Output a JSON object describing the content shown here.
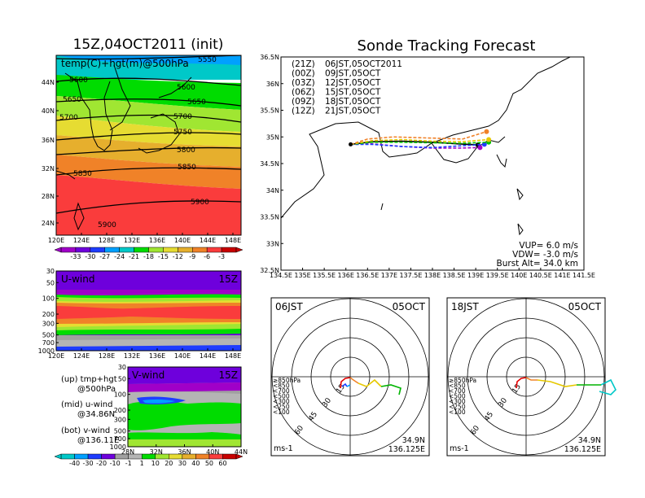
{
  "chart_data": [
    {
      "type": "heatmap",
      "title": "15Z,04OCT2011 (init)",
      "subtitle": "temp(C)+hgt(m)@500hPa",
      "x_ticks": [
        "120E",
        "124E",
        "128E",
        "132E",
        "136E",
        "140E",
        "144E",
        "148E"
      ],
      "y_ticks": [
        "24N",
        "28N",
        "32N",
        "36N",
        "40N",
        "44N"
      ],
      "contour_labels": [
        "5550",
        "5600",
        "5600",
        "5650",
        "5650",
        "5700",
        "5700",
        "5750",
        "5800",
        "5850",
        "5850",
        "5900",
        "5900"
      ],
      "colorbar_ticks": [
        "-33",
        "-30",
        "-27",
        "-24",
        "-21",
        "-18",
        "-15",
        "-12",
        "-9",
        "-6",
        "-3"
      ],
      "colorbar_colors": [
        "#a000c8",
        "#6e00dc",
        "#1e3cff",
        "#00a0ff",
        "#00c8c8",
        "#00dc00",
        "#a0e632",
        "#e6dc32",
        "#e6af2d",
        "#f08228",
        "#fa3c3c",
        "#c80000"
      ]
    },
    {
      "type": "heatmap",
      "title": "U-wind",
      "time_label": "15Z",
      "x_ticks": [
        "120E",
        "124E",
        "128E",
        "132E",
        "136E",
        "140E",
        "144E",
        "148E"
      ],
      "y_ticks": [
        "30",
        "50",
        "100",
        "200",
        "300",
        "500",
        "700",
        "1000"
      ]
    },
    {
      "type": "heatmap",
      "title": "V-wind",
      "time_label": "15Z",
      "x_ticks": [
        "28N",
        "32N",
        "36N",
        "40N",
        "44N"
      ],
      "y_ticks": [
        "30",
        "50",
        "100",
        "200",
        "300",
        "500",
        "700",
        "1000"
      ],
      "colorbar_ticks": [
        "-40",
        "-30",
        "-20",
        "-10",
        "-1",
        "1",
        "10",
        "20",
        "30",
        "40",
        "50",
        "60"
      ],
      "colorbar_colors": [
        "#00c8c8",
        "#00a0ff",
        "#1e3cff",
        "#6e00dc",
        "#a0a0a0",
        "#b4b4b4",
        "#00dc00",
        "#a0e632",
        "#e6dc32",
        "#e6af2d",
        "#f08228",
        "#fa3c3c",
        "#c80000"
      ]
    },
    {
      "type": "line",
      "title": "Sonde Tracking Forecast",
      "xlim": [
        134.5,
        141.5
      ],
      "ylim": [
        32.5,
        36.5
      ],
      "x_ticks": [
        "134.5E",
        "135E",
        "135.5E",
        "136E",
        "136.5E",
        "137E",
        "137.5E",
        "138E",
        "138.5E",
        "139E",
        "139.5E",
        "140E",
        "140.5E",
        "141E",
        "141.5E"
      ],
      "y_ticks": [
        "32.5N",
        "33N",
        "33.5N",
        "34N",
        "34.5N",
        "35N",
        "35.5N",
        "36N",
        "36.5N"
      ],
      "launch": {
        "lon": 136.11,
        "lat": 34.86
      },
      "series": [
        {
          "name": "(21Z)",
          "label": "06JST,05OCT2011",
          "color": "#000000",
          "x": [
            136.11,
            136.6,
            137.3,
            138.0,
            138.6,
            139.05
          ],
          "y": [
            34.86,
            34.91,
            34.92,
            34.9,
            34.87,
            34.85
          ]
        },
        {
          "name": "(00Z)",
          "label": "09JST,05OCT",
          "color": "#a000c8",
          "x": [
            136.11,
            136.6,
            137.3,
            138.0,
            138.6,
            139.1
          ],
          "y": [
            34.86,
            34.87,
            34.82,
            34.79,
            34.79,
            34.8
          ]
        },
        {
          "name": "(03Z)",
          "label": "12JST,05OCT",
          "color": "#1e3cff",
          "x": [
            136.11,
            136.6,
            137.3,
            138.0,
            138.6,
            139.2
          ],
          "y": [
            34.86,
            34.86,
            34.82,
            34.8,
            34.83,
            34.86
          ]
        },
        {
          "name": "(06Z)",
          "label": "15JST,05OCT",
          "color": "#00c000",
          "x": [
            136.11,
            136.6,
            137.3,
            138.0,
            138.7,
            139.3
          ],
          "y": [
            34.86,
            34.9,
            34.9,
            34.89,
            34.88,
            34.9
          ]
        },
        {
          "name": "(09Z)",
          "label": "18JST,05OCT",
          "color": "#e6c800",
          "x": [
            136.11,
            136.6,
            137.3,
            138.0,
            138.7,
            139.3
          ],
          "y": [
            34.86,
            34.93,
            34.95,
            34.92,
            34.91,
            34.95
          ]
        },
        {
          "name": "(12Z)",
          "label": "21JST,05OCT",
          "color": "#f08228",
          "x": [
            136.11,
            136.5,
            137.1,
            137.9,
            138.7,
            139.25
          ],
          "y": [
            34.86,
            34.96,
            35.0,
            34.98,
            34.96,
            35.1
          ]
        }
      ],
      "info": {
        "vup": "VUP= 6.0 m/s",
        "vdw": "VDW= -3.0 m/s",
        "burst": "Burst Alt= 34.0 km"
      }
    },
    {
      "type": "scatter",
      "title": "06JST",
      "date": "05OCT",
      "ring_labels": [
        "15",
        "30",
        "45",
        "60"
      ],
      "legend": [
        {
          "label": "≥850hPa",
          "color": "#e60000"
        },
        {
          "label": "<850",
          "color": "#f08228"
        },
        {
          "label": "<700",
          "color": "#e6c800"
        },
        {
          "label": "<500",
          "color": "#00b400"
        },
        {
          "label": "<300",
          "color": "#00c8c8"
        },
        {
          "label": "<250",
          "color": "#00a0ff"
        },
        {
          "label": "<100",
          "color": "#1e3cff"
        }
      ],
      "unit": "ms-1",
      "location": [
        "34.9N",
        "136.125E"
      ]
    },
    {
      "type": "scatter",
      "title": "18JST",
      "date": "05OCT",
      "ring_labels": [
        "15",
        "30",
        "45",
        "60"
      ],
      "legend": [
        {
          "label": "≥850hPa",
          "color": "#e60000"
        },
        {
          "label": "<850",
          "color": "#f08228"
        },
        {
          "label": "<700",
          "color": "#e6c800"
        },
        {
          "label": "<500",
          "color": "#00b400"
        },
        {
          "label": "<300",
          "color": "#00c8c8"
        },
        {
          "label": "<250",
          "color": "#00a0ff"
        },
        {
          "label": "<100",
          "color": "#1e3cff"
        }
      ],
      "unit": "ms-1",
      "location": [
        "34.9N",
        "136.125E"
      ]
    }
  ],
  "side_notes": [
    {
      "a": "(up) tmp+hgt",
      "b": "@500hPa"
    },
    {
      "a": "(mid) u-wind",
      "b": "@34.86N"
    },
    {
      "a": "(bot) v-wind",
      "b": "@136.11E"
    }
  ]
}
